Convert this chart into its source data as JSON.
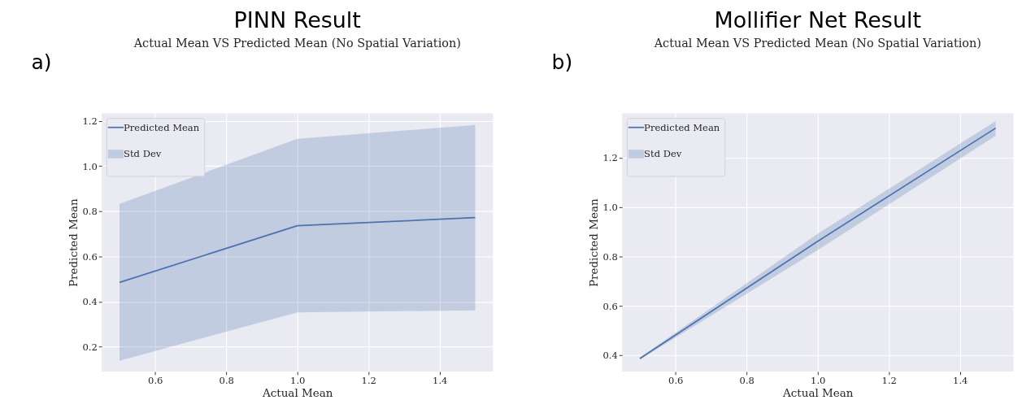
{
  "chart_data": [
    {
      "type": "line",
      "title": "PINN Result",
      "subtitle": "Actual Mean VS Predicted Mean (No Spatial Variation)",
      "xlabel": "Actual Mean",
      "ylabel": "Predicted Mean",
      "annotations": [
        "a)",
        "Std Dev"
      ],
      "x": [
        0.5,
        1.0,
        1.5
      ],
      "series": [
        {
          "name": "Predicted Mean",
          "color": "#4c72b0",
          "values": [
            0.485,
            0.736,
            0.772
          ],
          "lower": [
            0.138,
            0.352,
            0.361
          ],
          "upper": [
            0.833,
            1.121,
            1.182
          ]
        }
      ],
      "xlim": [
        0.45,
        1.55
      ],
      "xticks": [
        0.6,
        0.8,
        {
          "value": 1,
          "label": "1.0"
        },
        1.2,
        1.4
      ],
      "ylim": [
        0.09,
        1.234
      ],
      "yticks": [
        0.2,
        0.4,
        0.6,
        0.8,
        {
          "value": 1,
          "label": "1.0"
        },
        1.2
      ],
      "grid": true,
      "legend": "top left",
      "line_style": "solid"
    },
    {
      "type": "line",
      "title": "Mollifier Net Result",
      "subtitle": "Actual Mean VS Predicted Mean (No Spatial Variation)",
      "xlabel": "Actual Mean",
      "ylabel": "Predicted Mean",
      "annotations": [
        "b)",
        "Std Dev"
      ],
      "x": [
        0.5,
        1.0,
        1.5
      ],
      "series": [
        {
          "name": "Predicted Mean",
          "color": "#4c72b0",
          "values": [
            0.387,
            0.862,
            1.32
          ],
          "lower": [
            0.383,
            0.826,
            1.289
          ],
          "upper": [
            0.391,
            0.892,
            1.348
          ]
        }
      ],
      "xlim": [
        0.45,
        1.55
      ],
      "xticks": [
        0.6,
        0.8,
        {
          "value": 1,
          "label": "1.0"
        },
        1.2,
        1.4
      ],
      "ylim": [
        0.334,
        1.38
      ],
      "yticks": [
        0.4,
        0.6,
        0.8,
        {
          "value": 1,
          "label": "1.0"
        },
        1.2
      ],
      "grid": true,
      "legend": "top left",
      "line_style": "solid"
    }
  ]
}
